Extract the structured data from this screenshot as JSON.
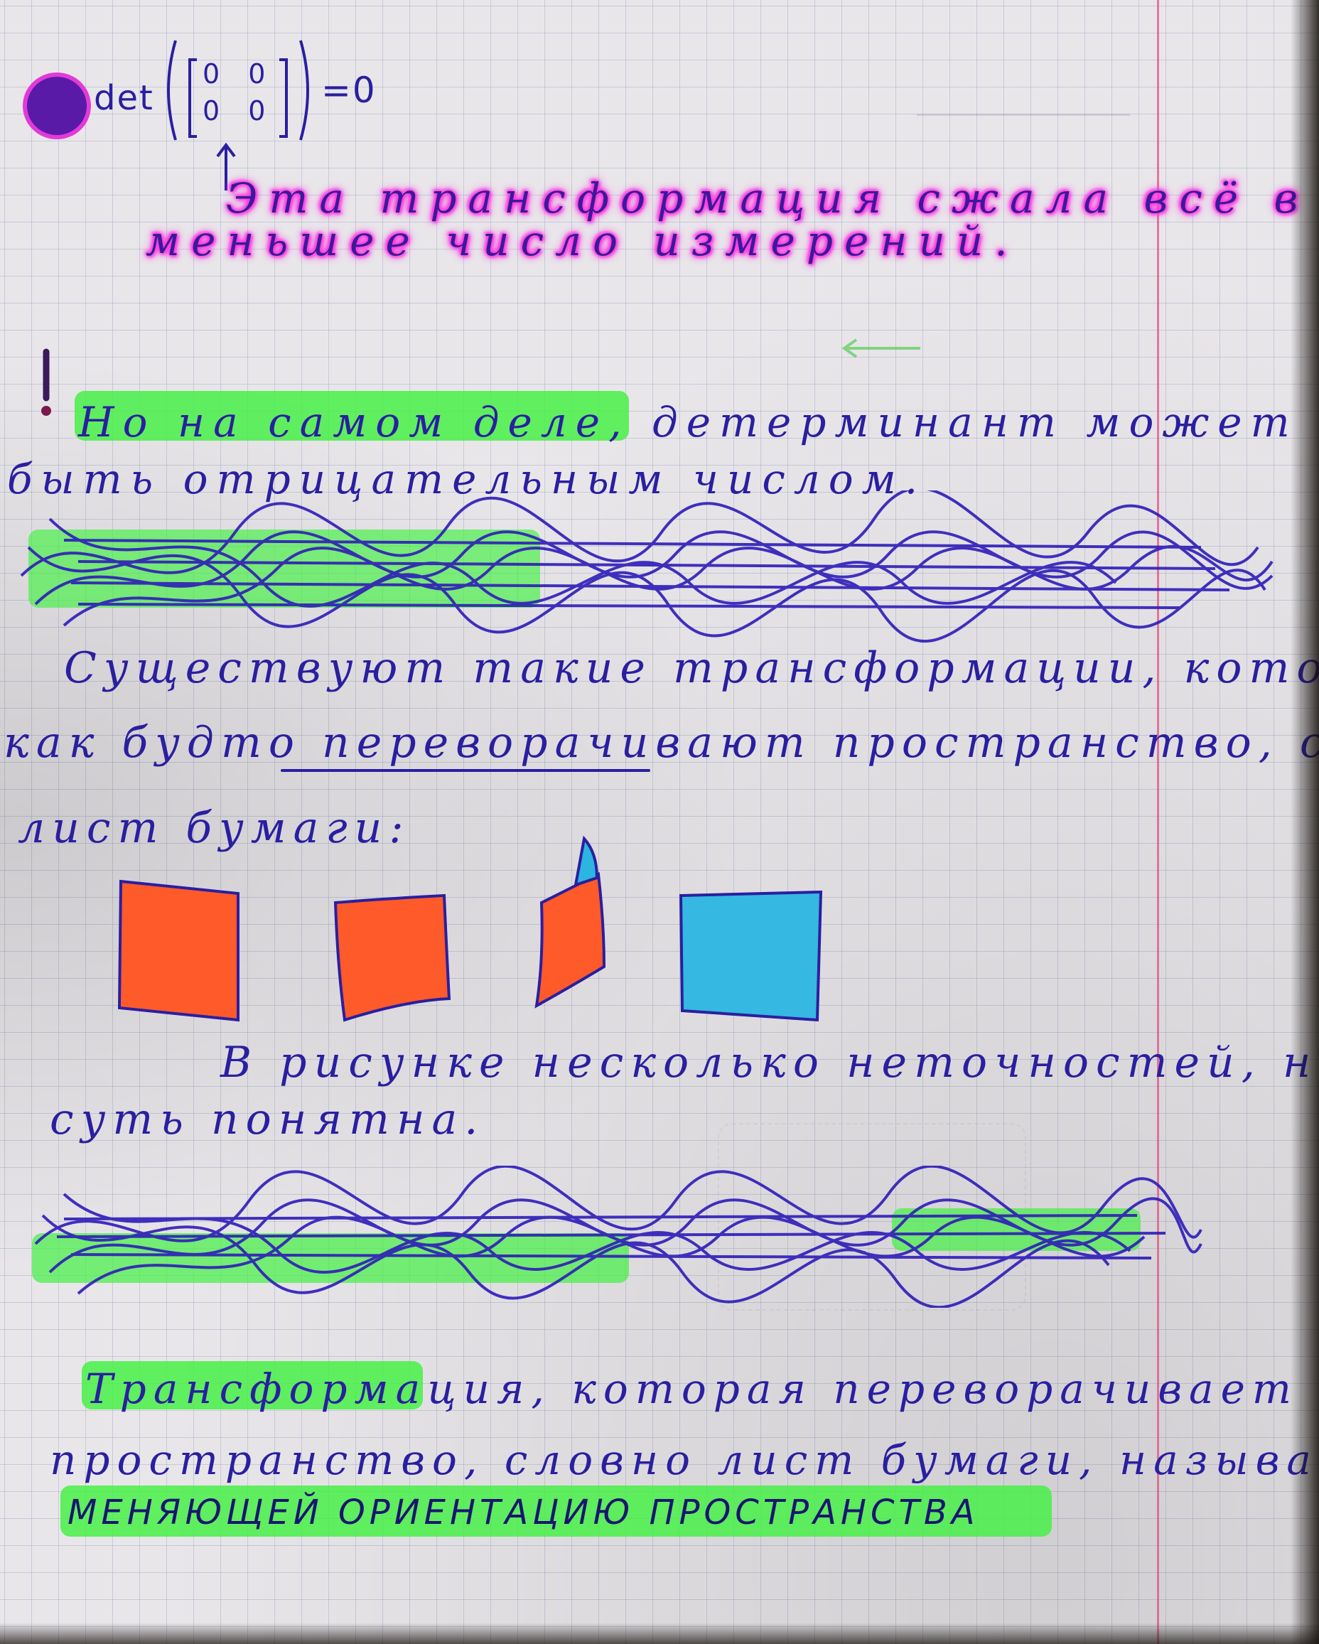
{
  "formula": {
    "det_label": "det",
    "matrix_row_1": "0 0",
    "matrix_row_2": "0 0",
    "result": "=0"
  },
  "note": {
    "pink_line_1": "Эта трансформация сжала всё в",
    "pink_line_2": "меньшее число измерений.",
    "sentence_1_line_1": "Но на самом деле, детерминант может",
    "sentence_1_line_2": "быть отрицательным числом.",
    "paragraph_2_line_1": "Существуют такие трансформации, которые",
    "paragraph_2_line_2": "как будто переворачивают пространство, словно",
    "paragraph_2_line_3": "лист бумаги:",
    "paragraph_3_line_1": "В рисунке несколько неточностей, но",
    "paragraph_3_line_2": "суть понятна.",
    "paragraph_4_line_1": "Трансформация, которая переворачивает",
    "paragraph_4_line_2": "пространство, словно лист бумаги, называется",
    "definition_term": "МЕНЯЮЩЕЙ ОРИЕНТАЦИЮ ПРОСТРАНСТВА"
  },
  "colors": {
    "ink": "#2a1fa0",
    "green_highlight": "#46f046",
    "pink_highlight": "#ff38e0",
    "orange_sheet": "#ff5a2a",
    "blue_sheet": "#35b8e2",
    "margin_line": "#e25082"
  }
}
